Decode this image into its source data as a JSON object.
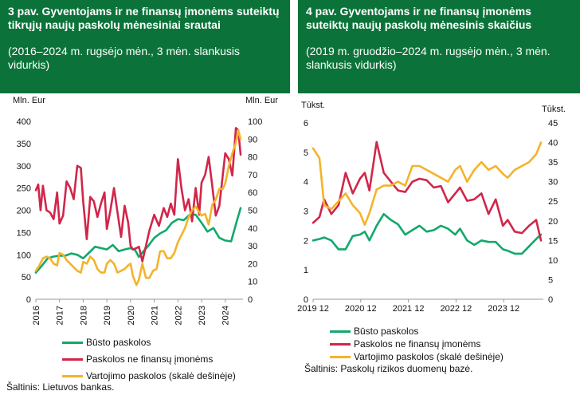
{
  "colors": {
    "header_bg": "#0b7339",
    "green": "#13a86b",
    "red": "#d1264a",
    "orange": "#f4b32a"
  },
  "chart_data": [
    {
      "type": "line",
      "title": "3 pav. Gyventojams ir ne finansų įmonėms suteiktų tikrųjų naujų paskolų mėnesiniai srautai",
      "subtitle": "(2016–2024 m. rugsėjo mėn., 3 mėn. slankusis vidurkis)",
      "ylabel_left": "Mln. Eur",
      "ylabel_right": "Mln. Eur",
      "ylim_left": [
        0,
        400
      ],
      "ylim_right": [
        0,
        100
      ],
      "yticks_left": [
        "0",
        "50",
        "100",
        "150",
        "200",
        "250",
        "300",
        "350",
        "400"
      ],
      "yticks_right": [
        "0",
        "10",
        "20",
        "30",
        "40",
        "50",
        "60",
        "70",
        "80",
        "90",
        "100"
      ],
      "xlim": [
        2016,
        2024.75
      ],
      "xticks": [
        "2016",
        "2017",
        "2018",
        "2019",
        "2020",
        "2021",
        "2022",
        "2023",
        "2024"
      ],
      "series": [
        {
          "name": "Būsto paskolos",
          "axis": "left",
          "color": "green",
          "x": [
            2016,
            2016.25,
            2016.5,
            2016.75,
            2017,
            2017.25,
            2017.5,
            2017.75,
            2018,
            2018.25,
            2018.5,
            2018.75,
            2019,
            2019.25,
            2019.5,
            2019.75,
            2020,
            2020.2,
            2020.35,
            2020.5,
            2020.75,
            2021,
            2021.25,
            2021.5,
            2021.75,
            2022,
            2022.25,
            2022.5,
            2022.75,
            2023,
            2023.25,
            2023.5,
            2023.75,
            2024,
            2024.25,
            2024.5,
            2024.65
          ],
          "values": [
            60,
            75,
            92,
            96,
            98,
            98,
            103,
            100,
            92,
            105,
            118,
            115,
            112,
            122,
            108,
            112,
            115,
            110,
            95,
            105,
            120,
            138,
            148,
            155,
            172,
            180,
            178,
            190,
            190,
            172,
            152,
            160,
            138,
            132,
            130,
            178,
            205
          ]
        },
        {
          "name": "Paskolos ne finansų įmonėms",
          "axis": "left",
          "color": "red",
          "x": [
            2016,
            2016.1,
            2016.2,
            2016.3,
            2016.45,
            2016.6,
            2016.75,
            2016.9,
            2017,
            2017.15,
            2017.3,
            2017.45,
            2017.6,
            2017.75,
            2017.9,
            2018,
            2018.15,
            2018.3,
            2018.45,
            2018.6,
            2018.75,
            2018.9,
            2019,
            2019.15,
            2019.3,
            2019.45,
            2019.6,
            2019.75,
            2019.9,
            2020,
            2020.1,
            2020.25,
            2020.35,
            2020.5,
            2020.65,
            2020.8,
            2021,
            2021.2,
            2021.4,
            2021.55,
            2021.7,
            2021.85,
            2022,
            2022.15,
            2022.3,
            2022.45,
            2022.6,
            2022.75,
            2022.9,
            2023,
            2023.15,
            2023.3,
            2023.45,
            2023.6,
            2023.75,
            2023.9,
            2024,
            2024.15,
            2024.3,
            2024.45,
            2024.55,
            2024.65
          ],
          "values": [
            245,
            258,
            200,
            255,
            200,
            195,
            180,
            240,
            170,
            188,
            265,
            250,
            225,
            300,
            295,
            220,
            135,
            230,
            220,
            185,
            215,
            240,
            158,
            200,
            250,
            195,
            140,
            210,
            172,
            120,
            112,
            115,
            118,
            85,
            120,
            155,
            190,
            165,
            205,
            185,
            215,
            190,
            315,
            250,
            200,
            225,
            175,
            250,
            190,
            262,
            280,
            320,
            255,
            188,
            210,
            280,
            328,
            315,
            278,
            385,
            380,
            325
          ]
        },
        {
          "name": "Vartojimo paskolos (skalė dešinėje)",
          "axis": "right",
          "color": "orange",
          "x": [
            2016,
            2016.15,
            2016.3,
            2016.45,
            2016.6,
            2016.75,
            2016.9,
            2017,
            2017.15,
            2017.3,
            2017.45,
            2017.6,
            2017.75,
            2017.9,
            2018,
            2018.15,
            2018.3,
            2018.45,
            2018.6,
            2018.75,
            2018.9,
            2019,
            2019.15,
            2019.3,
            2019.45,
            2019.6,
            2019.75,
            2019.9,
            2020,
            2020.1,
            2020.25,
            2020.35,
            2020.5,
            2020.65,
            2020.8,
            2020.95,
            2021.1,
            2021.25,
            2021.4,
            2021.55,
            2021.7,
            2021.85,
            2022,
            2022.15,
            2022.3,
            2022.45,
            2022.6,
            2022.75,
            2022.9,
            2023,
            2023.15,
            2023.3,
            2023.45,
            2023.6,
            2023.75,
            2023.9,
            2024,
            2024.15,
            2024.3,
            2024.45,
            2024.55,
            2024.65
          ],
          "values": [
            16,
            19,
            23,
            24,
            23,
            20,
            19,
            26,
            25,
            22,
            20,
            18,
            16,
            15,
            21,
            20,
            24,
            22,
            17,
            15,
            15,
            20,
            22,
            20,
            15,
            16,
            17,
            19,
            20,
            13,
            8,
            11,
            20,
            12,
            12,
            16,
            17,
            27,
            27,
            23,
            23,
            26,
            32,
            36,
            40,
            46,
            50,
            52,
            49,
            47,
            48,
            42,
            53,
            56,
            62,
            62,
            65,
            75,
            82,
            88,
            95,
            90
          ]
        }
      ]
    },
    {
      "type": "line",
      "title": "4 pav. Gyventojams ir ne finansų įmonėms suteiktų naujų paskolų mėnesinis skaičius",
      "subtitle": "(2019 m. gruodžio–2024 m. rugsėjo mėn., 3 mėn. slankusis vidurkis)",
      "ylabel_left": "Tūkst.",
      "ylabel_right": "Tūkst.",
      "ylim_left": [
        0,
        6
      ],
      "ylim_right": [
        0,
        45
      ],
      "yticks_left": [
        "0",
        "1",
        "2",
        "3",
        "4",
        "5",
        "6"
      ],
      "yticks_right": [
        "0",
        "5",
        "10",
        "15",
        "20",
        "25",
        "30",
        "35",
        "40",
        "45"
      ],
      "xlim": [
        2019.917,
        2024.75
      ],
      "xticks": [
        "2019 12",
        "2020 12",
        "2021 12",
        "2022 12",
        "2023 12"
      ],
      "series": [
        {
          "name": "Būsto paskolos",
          "axis": "left",
          "color": "green",
          "x": [
            2019.917,
            2020.05,
            2020.15,
            2020.3,
            2020.45,
            2020.6,
            2020.75,
            2020.9,
            2021,
            2021.1,
            2021.25,
            2021.4,
            2021.55,
            2021.7,
            2021.85,
            2022,
            2022.15,
            2022.3,
            2022.45,
            2022.6,
            2022.75,
            2022.9,
            2023,
            2023.15,
            2023.3,
            2023.45,
            2023.6,
            2023.75,
            2023.9,
            2024,
            2024.15,
            2024.3,
            2024.45,
            2024.6,
            2024.7
          ],
          "values": [
            2.0,
            2.05,
            2.1,
            2.0,
            1.7,
            1.7,
            2.15,
            2.2,
            2.3,
            2.0,
            2.5,
            2.9,
            2.7,
            2.55,
            2.2,
            2.35,
            2.5,
            2.3,
            2.35,
            2.5,
            2.4,
            2.2,
            2.4,
            2.0,
            1.85,
            2.0,
            1.95,
            1.95,
            1.7,
            1.65,
            1.55,
            1.55,
            1.8,
            2.05,
            2.2
          ]
        },
        {
          "name": "Paskolos ne finansų įmonėms",
          "axis": "left",
          "color": "red",
          "x": [
            2019.917,
            2020.05,
            2020.15,
            2020.3,
            2020.45,
            2020.6,
            2020.75,
            2020.9,
            2021,
            2021.1,
            2021.25,
            2021.4,
            2021.55,
            2021.7,
            2021.85,
            2022,
            2022.15,
            2022.3,
            2022.45,
            2022.6,
            2022.75,
            2022.9,
            2023,
            2023.15,
            2023.3,
            2023.45,
            2023.6,
            2023.75,
            2023.9,
            2024,
            2024.15,
            2024.3,
            2024.45,
            2024.6,
            2024.7
          ],
          "values": [
            2.6,
            2.8,
            3.4,
            2.9,
            3.2,
            4.3,
            3.6,
            4.1,
            4.3,
            3.7,
            5.35,
            4.3,
            4.0,
            3.7,
            3.65,
            4.0,
            4.1,
            4.05,
            3.8,
            3.85,
            3.3,
            3.6,
            3.8,
            3.35,
            3.4,
            3.6,
            2.9,
            3.4,
            2.5,
            2.7,
            2.3,
            2.25,
            2.5,
            2.7,
            2.0
          ]
        },
        {
          "name": "Vartojimo paskolos (skalė dešinėje)",
          "axis": "right",
          "color": "orange",
          "x": [
            2019.917,
            2020.05,
            2020.15,
            2020.3,
            2020.45,
            2020.6,
            2020.75,
            2020.9,
            2021,
            2021.1,
            2021.25,
            2021.4,
            2021.55,
            2021.7,
            2021.85,
            2022,
            2022.15,
            2022.3,
            2022.45,
            2022.6,
            2022.75,
            2022.9,
            2023,
            2023.15,
            2023.3,
            2023.45,
            2023.6,
            2023.75,
            2023.9,
            2024,
            2024.15,
            2024.3,
            2024.45,
            2024.6,
            2024.7
          ],
          "values": [
            38.5,
            36,
            24,
            23,
            25,
            27,
            24,
            22,
            19,
            22,
            28,
            29,
            29,
            30,
            29,
            34,
            34,
            33,
            32,
            31,
            30,
            33,
            34,
            30,
            33,
            35,
            33,
            34,
            32,
            31,
            33,
            34,
            35,
            37,
            40
          ]
        }
      ]
    }
  ],
  "legend_left": [
    "Būsto paskolos",
    "Paskolos ne finansų įmonėms",
    "Vartojimo paskolos (skalė dešinėje)"
  ],
  "legend_right": [
    "Būsto paskolos",
    "Paskolos ne finansų įmonėms",
    "Vartojimo paskolos (skalė dešinėje)"
  ],
  "source_left": "Šaltinis: Lietuvos bankas.",
  "source_right": "Šaltinis: Paskolų rizikos duomenų bazė."
}
